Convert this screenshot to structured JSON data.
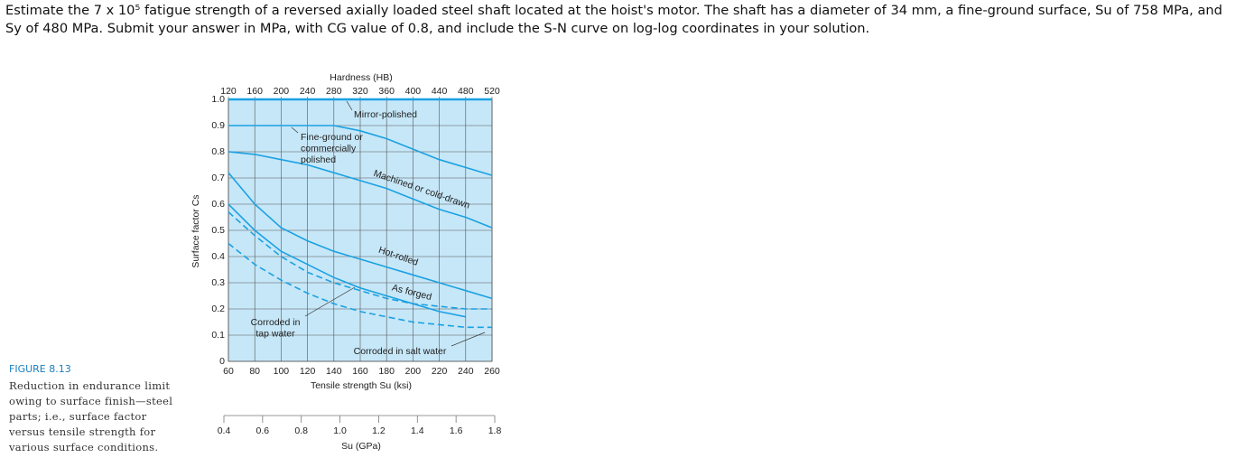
{
  "question": "Estimate the 7 x 10⁵ fatigue strength of a reversed axially loaded steel shaft located at the hoist's motor. The shaft has a diameter of 34 mm, a fine-ground surface, Su of 758 MPa, and Sy of 480 MPa. Submit your answer in MPa, with CG value of 0.8, and include the S-N curve on log-log coordinates in your solution.",
  "figure_number": "FIGURE 8.13",
  "caption": "Reduction in endurance limit owing to surface finish—steel parts; i.e., surface factor versus tensile strength for various surface conditions.",
  "chart_data": {
    "type": "line",
    "xlabel": "Tensile strength Su (ksi)",
    "ylabel": "Surface factor Cs",
    "x": [
      60,
      80,
      100,
      120,
      140,
      160,
      180,
      200,
      220,
      240,
      260
    ],
    "xlim": [
      60,
      260
    ],
    "xticks": [
      60,
      80,
      100,
      120,
      140,
      160,
      180,
      200,
      220,
      240,
      260
    ],
    "ylim": [
      0,
      1
    ],
    "yticks": [
      0,
      0.1,
      0.2,
      0.3,
      0.4,
      0.5,
      0.6,
      0.7,
      0.8,
      0.9,
      {
        "value": 1,
        "label": "1.0"
      }
    ],
    "grid": true,
    "hardness_axis": {
      "label": "Hardness (HB)",
      "lim": [
        120,
        520
      ],
      "ticks": [
        120,
        160,
        200,
        240,
        280,
        320,
        360,
        400,
        440,
        480,
        520
      ]
    },
    "gpa_axis": {
      "label": "Su (GPa)",
      "lim": [
        0.4,
        1.8
      ],
      "ticks": [
        0.4,
        0.6,
        0.8,
        {
          "value": 1,
          "label": "1.0"
        },
        1.2,
        1.4,
        1.6,
        1.8
      ]
    },
    "series": [
      {
        "label_lines": [
          "Mirror-polished"
        ],
        "color": "#1ba1e2",
        "dashed": false,
        "values": [
          1,
          1,
          1,
          1,
          1,
          1,
          1,
          1,
          1,
          1,
          1
        ]
      },
      {
        "label_lines": [
          "Fine-ground or",
          "commercially",
          "polished"
        ],
        "color": "#1ba1e2",
        "dashed": false,
        "values": [
          0.9,
          0.9,
          0.9,
          0.9,
          0.9,
          0.88,
          0.85,
          0.81,
          0.77,
          0.74,
          0.71
        ]
      },
      {
        "label_lines": [
          "Machined or cold-drawn"
        ],
        "color": "#1ba1e2",
        "dashed": false,
        "values": [
          0.8,
          0.79,
          0.77,
          0.75,
          0.72,
          0.69,
          0.66,
          0.62,
          0.58,
          0.55,
          0.51
        ]
      },
      {
        "label_lines": [
          "Hot-rolled"
        ],
        "color": "#1ba1e2",
        "dashed": false,
        "values": [
          0.72,
          0.6,
          0.51,
          0.46,
          0.42,
          0.39,
          0.36,
          0.33,
          0.3,
          0.27,
          0.24
        ]
      },
      {
        "label_lines": [
          "As forged"
        ],
        "color": "#1ba1e2",
        "dashed": false,
        "values": [
          0.6,
          0.5,
          0.42,
          0.37,
          0.32,
          0.28,
          0.25,
          0.22,
          0.19,
          0.17,
          null
        ]
      },
      {
        "label_lines": [
          "Corroded in",
          "tap water"
        ],
        "color": "#1ba1e2",
        "dashed": true,
        "values": [
          0.57,
          0.48,
          0.4,
          0.34,
          0.3,
          0.27,
          0.24,
          0.22,
          0.21,
          0.2,
          0.2
        ]
      },
      {
        "label_lines": [
          "Corroded in salt water"
        ],
        "color": "#1ba1e2",
        "dashed": true,
        "values": [
          0.45,
          0.37,
          0.31,
          0.26,
          0.22,
          0.19,
          0.17,
          0.15,
          0.14,
          0.13,
          0.13
        ]
      }
    ]
  }
}
